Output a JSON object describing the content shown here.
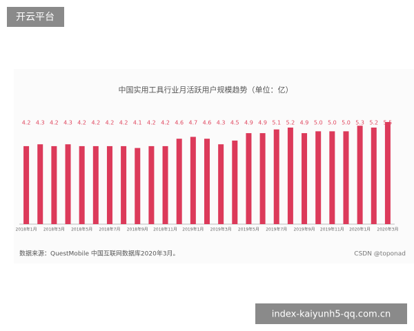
{
  "badge": "开云平台",
  "watermark": "index-kaiyunh5-qq.com.cn",
  "chart_data": {
    "type": "bar",
    "title": "中国实用工具行业月活跃用户规模趋势（单位：亿）",
    "categories": [
      "2018年1月",
      null,
      "2018年3月",
      null,
      "2018年5月",
      null,
      "2018年7月",
      null,
      "2018年9月",
      null,
      "2018年11月",
      null,
      "2019年1月",
      null,
      "2019年3月",
      null,
      "2019年5月",
      null,
      "2019年7月",
      null,
      "2019年9月",
      null,
      "2019年11月",
      null,
      "2020年1月",
      null,
      "2020年3月"
    ],
    "values": [
      4.2,
      4.3,
      4.2,
      4.3,
      4.2,
      4.2,
      4.2,
      4.2,
      4.1,
      4.2,
      4.2,
      4.6,
      4.7,
      4.6,
      4.3,
      4.5,
      4.9,
      4.9,
      5.1,
      5.2,
      4.9,
      5.0,
      5.0,
      5.0,
      5.3,
      5.2,
      5.5
    ],
    "value_labels": [
      "4.2",
      "4.3",
      "4.2",
      "4.3",
      "4.2",
      "4.2",
      "4.2",
      "4.2",
      "4.1",
      "4.2",
      "4.2",
      "4.6",
      "4.7",
      "4.6",
      "4.3",
      "4.5",
      "4.9",
      "4.9",
      "5.1",
      "5.2",
      "4.9",
      "5.0",
      "5.0",
      "5.0",
      "5.3",
      "5.2",
      "5.5"
    ],
    "color": "#dc3a5a",
    "ylim": [
      0,
      6.5
    ],
    "source": "数据来源：QuestMobile  中国互联网数据库2020年3月。",
    "credit": "CSDN @toponad"
  }
}
